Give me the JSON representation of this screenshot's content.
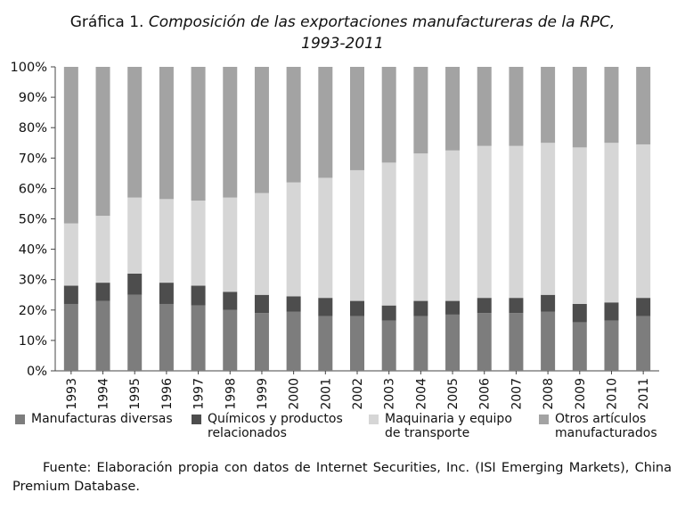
{
  "title": {
    "prefix": "Gráfica 1.",
    "line1": "Composición de las exportaciones manufactureras de la RPC,",
    "line2": "1993-2011"
  },
  "chart_data": {
    "type": "bar",
    "stacked": true,
    "categories": [
      "1993",
      "1994",
      "1995",
      "1996",
      "1997",
      "1998",
      "1999",
      "2000",
      "2001",
      "2002",
      "2003",
      "2004",
      "2005",
      "2006",
      "2007",
      "2008",
      "2009",
      "2010",
      "2011"
    ],
    "series": [
      {
        "name": "Manufacturas diversas",
        "color": "#7d7d7d",
        "values": [
          22,
          23,
          25,
          22,
          21.5,
          20,
          19,
          19.5,
          18,
          18,
          16.5,
          18,
          18.5,
          19,
          19,
          19.5,
          16,
          16.5,
          18
        ]
      },
      {
        "name": "Químicos y productos relacionados",
        "color": "#4d4d4d",
        "values": [
          6,
          6,
          7,
          7,
          6.5,
          6,
          6,
          5,
          6,
          5,
          5,
          5,
          4.5,
          5,
          5,
          5.5,
          6,
          6,
          6
        ]
      },
      {
        "name": "Maquinaria y equipo de transporte",
        "color": "#d6d6d6",
        "values": [
          20.5,
          22,
          25,
          27.5,
          28,
          31,
          33.5,
          37.5,
          39.5,
          43,
          47,
          48.5,
          49.5,
          50,
          50,
          50,
          51.5,
          52.5,
          50.5
        ]
      },
      {
        "name": "Otros artículos manufacturados",
        "color": "#a3a3a3",
        "values": [
          51.5,
          49,
          43,
          43.5,
          44,
          43,
          41.5,
          38,
          36.5,
          34,
          31.5,
          28.5,
          27.5,
          26,
          26,
          25,
          26.5,
          25,
          25.5
        ]
      }
    ],
    "ylim": [
      0,
      100
    ],
    "yticks": [
      "0%",
      "10%",
      "20%",
      "30%",
      "40%",
      "50%",
      "60%",
      "70%",
      "80%",
      "90%",
      "100%"
    ],
    "grid": false,
    "legend_position": "bottom"
  },
  "legend": [
    {
      "line1": "Manufacturas diversas",
      "line2": "",
      "color": "#7d7d7d"
    },
    {
      "line1": "Químicos y productos",
      "line2": "relacionados",
      "color": "#4d4d4d"
    },
    {
      "line1": "Maquinaria y equipo",
      "line2": "de transporte",
      "color": "#d6d6d6"
    },
    {
      "line1": "Otros artículos",
      "line2": "manufacturados",
      "color": "#a3a3a3"
    }
  ],
  "source": "Fuente: Elaboración propia con datos de Internet Securities, Inc. (ISI Emerging Markets), China Premium Database."
}
